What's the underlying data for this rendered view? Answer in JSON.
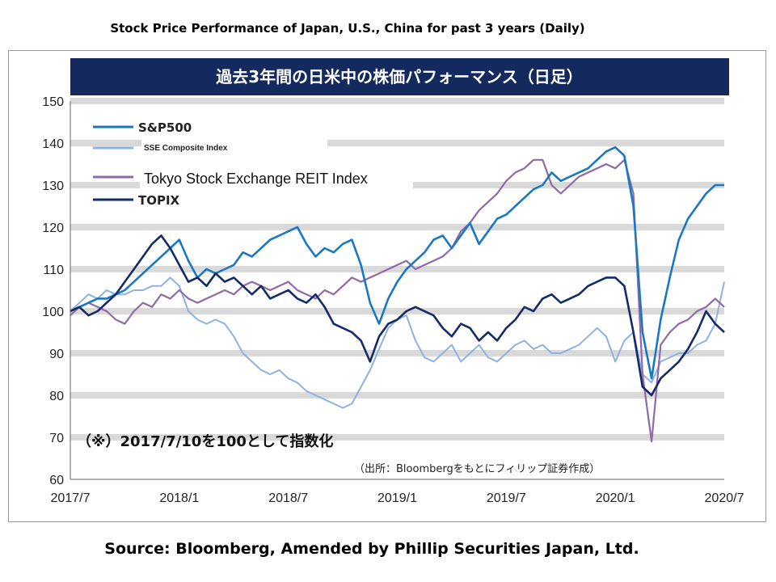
{
  "page": {
    "top_title": "Stock Price Performance of Japan, U.S., China for past 3 years (Daily)",
    "source": "Source: Bloomberg, Amended by Phillip Securities Japan, Ltd."
  },
  "chart_data": {
    "type": "line",
    "title": "過去3年間の日米中の株価パフォーマンス（日足）",
    "note": "（※）2017/7/10を100として指数化",
    "source_note": "（出所：Bloombergをもとにフィリップ証券作成）",
    "x_tick_labels": [
      "2017/7",
      "2018/1",
      "2018/7",
      "2019/1",
      "2019/7",
      "2020/1",
      "2020/7"
    ],
    "x_range": [
      0,
      36
    ],
    "ylim": [
      60,
      150
    ],
    "y_ticks": [
      60,
      70,
      80,
      90,
      100,
      110,
      120,
      130,
      140,
      150
    ],
    "grid": true,
    "legend_position": "top-left",
    "series": [
      {
        "name": "S&P500",
        "color": "#1a78c2",
        "width": 2.6,
        "x": [
          0,
          0.5,
          1,
          1.5,
          2,
          2.5,
          3,
          3.5,
          4,
          4.5,
          5,
          5.5,
          6,
          6.5,
          7,
          7.5,
          8,
          8.5,
          9,
          9.5,
          10,
          10.5,
          11,
          11.5,
          12,
          12.5,
          13,
          13.5,
          14,
          14.5,
          15,
          15.5,
          16,
          16.5,
          17,
          17.5,
          18,
          18.5,
          19,
          19.5,
          20,
          20.5,
          21,
          21.5,
          22,
          22.5,
          23,
          23.5,
          24,
          24.5,
          25,
          25.5,
          26,
          26.5,
          27,
          27.5,
          28,
          28.5,
          29,
          29.5,
          30,
          30.5,
          31,
          31.5,
          32,
          32.5,
          33,
          33.5,
          34,
          34.5,
          35,
          35.5,
          36
        ],
        "values": [
          100,
          101,
          102,
          103,
          103,
          104,
          105,
          107,
          109,
          111,
          113,
          115,
          117,
          112,
          108,
          110,
          109,
          110,
          111,
          114,
          113,
          115,
          117,
          118,
          119,
          120,
          116,
          113,
          115,
          114,
          116,
          117,
          111,
          102,
          97,
          103,
          107,
          110,
          112,
          114,
          117,
          118,
          115,
          118,
          121,
          116,
          119,
          122,
          123,
          125,
          127,
          129,
          130,
          133,
          131,
          132,
          133,
          134,
          136,
          138,
          139,
          137,
          125,
          95,
          84,
          98,
          108,
          117,
          122,
          125,
          128,
          130,
          130
        ]
      },
      {
        "name": "SSE Composite Index",
        "color": "#8cb2e2",
        "width": 2.0,
        "x": [
          0,
          0.5,
          1,
          1.5,
          2,
          2.5,
          3,
          3.5,
          4,
          4.5,
          5,
          5.5,
          6,
          6.5,
          7,
          7.5,
          8,
          8.5,
          9,
          9.5,
          10,
          10.5,
          11,
          11.5,
          12,
          12.5,
          13,
          13.5,
          14,
          14.5,
          15,
          15.5,
          16,
          16.5,
          17,
          17.5,
          18,
          18.5,
          19,
          19.5,
          20,
          20.5,
          21,
          21.5,
          22,
          22.5,
          23,
          23.5,
          24,
          24.5,
          25,
          25.5,
          26,
          26.5,
          27,
          27.5,
          28,
          28.5,
          29,
          29.5,
          30,
          30.5,
          31,
          31.5,
          32,
          32.5,
          33,
          33.5,
          34,
          34.5,
          35,
          35.5,
          36
        ],
        "values": [
          100,
          102,
          104,
          103,
          105,
          104,
          104,
          105,
          105,
          106,
          106,
          108,
          106,
          100,
          98,
          97,
          98,
          97,
          94,
          90,
          88,
          86,
          85,
          86,
          84,
          83,
          81,
          80,
          79,
          78,
          77,
          78,
          82,
          86,
          91,
          96,
          98,
          99,
          93,
          89,
          88,
          90,
          92,
          88,
          90,
          92,
          89,
          88,
          90,
          92,
          93,
          91,
          92,
          90,
          90,
          91,
          92,
          94,
          96,
          94,
          88,
          93,
          95,
          85,
          83,
          88,
          89,
          90,
          90,
          92,
          93,
          97,
          107
        ]
      },
      {
        "name": "Tokyo Stock Exchange REIT Index",
        "color": "#8e6aa8",
        "width": 2.2,
        "x": [
          0,
          0.5,
          1,
          1.5,
          2,
          2.5,
          3,
          3.5,
          4,
          4.5,
          5,
          5.5,
          6,
          6.5,
          7,
          7.5,
          8,
          8.5,
          9,
          9.5,
          10,
          10.5,
          11,
          11.5,
          12,
          12.5,
          13,
          13.5,
          14,
          14.5,
          15,
          15.5,
          16,
          16.5,
          17,
          17.5,
          18,
          18.5,
          19,
          19.5,
          20,
          20.5,
          21,
          21.5,
          22,
          22.5,
          23,
          23.5,
          24,
          24.5,
          25,
          25.5,
          26,
          26.5,
          27,
          27.5,
          28,
          28.5,
          29,
          29.5,
          30,
          30.5,
          31,
          31.5,
          32,
          32.5,
          33,
          33.5,
          34,
          34.5,
          35,
          35.5,
          36
        ],
        "values": [
          99,
          101,
          102,
          101,
          100,
          98,
          97,
          100,
          102,
          101,
          104,
          103,
          105,
          103,
          102,
          103,
          104,
          105,
          104,
          106,
          107,
          106,
          105,
          106,
          107,
          105,
          104,
          103,
          105,
          104,
          106,
          108,
          107,
          108,
          109,
          110,
          111,
          112,
          110,
          111,
          112,
          113,
          115,
          119,
          121,
          124,
          126,
          128,
          131,
          133,
          134,
          136,
          136,
          130,
          128,
          130,
          132,
          133,
          134,
          135,
          134,
          136,
          128,
          85,
          69,
          92,
          95,
          97,
          98,
          100,
          101,
          103,
          101
        ]
      },
      {
        "name": "TOPIX",
        "color": "#132b66",
        "width": 2.6,
        "x": [
          0,
          0.5,
          1,
          1.5,
          2,
          2.5,
          3,
          3.5,
          4,
          4.5,
          5,
          5.5,
          6,
          6.5,
          7,
          7.5,
          8,
          8.5,
          9,
          9.5,
          10,
          10.5,
          11,
          11.5,
          12,
          12.5,
          13,
          13.5,
          14,
          14.5,
          15,
          15.5,
          16,
          16.5,
          17,
          17.5,
          18,
          18.5,
          19,
          19.5,
          20,
          20.5,
          21,
          21.5,
          22,
          22.5,
          23,
          23.5,
          24,
          24.5,
          25,
          25.5,
          26,
          26.5,
          27,
          27.5,
          28,
          28.5,
          29,
          29.5,
          30,
          30.5,
          31,
          31.5,
          32,
          32.5,
          33,
          33.5,
          34,
          34.5,
          35,
          35.5,
          36
        ],
        "values": [
          100,
          101,
          99,
          100,
          102,
          104,
          107,
          110,
          113,
          116,
          118,
          115,
          111,
          107,
          108,
          106,
          109,
          107,
          108,
          106,
          104,
          106,
          103,
          104,
          105,
          103,
          102,
          104,
          101,
          97,
          96,
          95,
          93,
          88,
          94,
          97,
          98,
          100,
          101,
          100,
          99,
          96,
          94,
          97,
          96,
          93,
          95,
          93,
          96,
          98,
          101,
          100,
          103,
          104,
          102,
          103,
          104,
          106,
          107,
          108,
          108,
          106,
          95,
          82,
          80,
          84,
          86,
          88,
          91,
          95,
          100,
          97,
          95
        ]
      }
    ]
  }
}
